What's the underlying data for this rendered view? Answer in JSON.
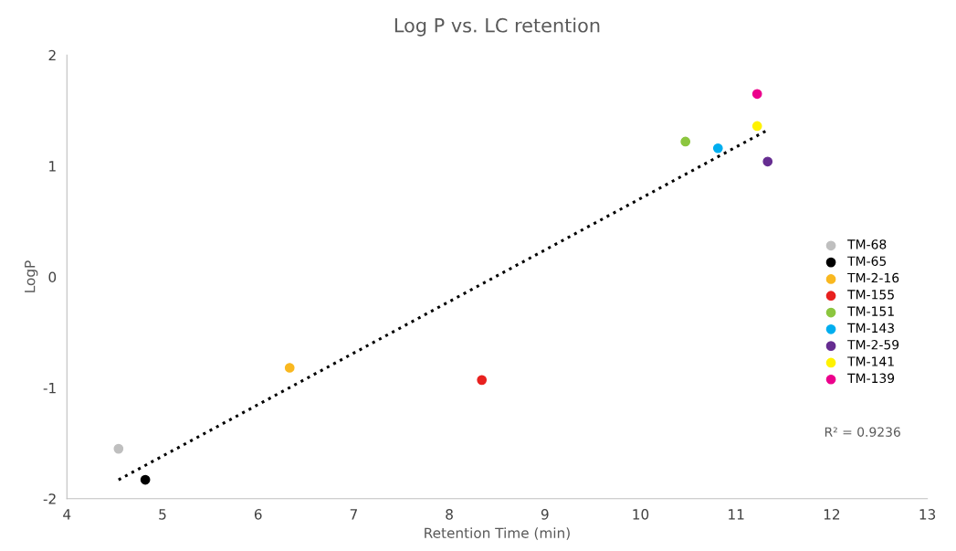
{
  "chart_data": {
    "type": "scatter",
    "title": "Log P vs. LC retention",
    "xlabel": "Retention Time (min)",
    "ylabel": "LogP",
    "xlim": [
      4,
      13
    ],
    "xticks": [
      4,
      5,
      6,
      7,
      8,
      9,
      10,
      11,
      12,
      13
    ],
    "ylim": [
      -2,
      2
    ],
    "yticks": [
      -2,
      -1,
      0,
      1,
      2
    ],
    "grid": false,
    "legend": "right",
    "marker": "circle",
    "annotations": [
      "R² = 0.9236"
    ],
    "series": [
      {
        "name": "TM-68",
        "color": "#bfbfbf",
        "x": [
          4.54
        ],
        "values": [
          -1.55
        ]
      },
      {
        "name": "TM-65",
        "color": "#000000",
        "x": [
          4.82
        ],
        "values": [
          -1.83
        ]
      },
      {
        "name": "TM-2-16",
        "color": "#f9b820",
        "x": [
          6.33
        ],
        "values": [
          -0.82
        ]
      },
      {
        "name": "TM-155",
        "color": "#e8211f",
        "x": [
          8.34
        ],
        "values": [
          -0.93
        ]
      },
      {
        "name": "TM-151",
        "color": "#8cc63f",
        "x": [
          10.47
        ],
        "values": [
          1.22
        ]
      },
      {
        "name": "TM-143",
        "color": "#00aeef",
        "x": [
          10.81
        ],
        "values": [
          1.16
        ]
      },
      {
        "name": "TM-2-59",
        "color": "#662d91",
        "x": [
          11.33
        ],
        "values": [
          1.04
        ]
      },
      {
        "name": "TM-141",
        "color": "#fff200",
        "x": [
          11.22
        ],
        "values": [
          1.36
        ]
      },
      {
        "name": "TM-139",
        "color": "#ec008c",
        "x": [
          11.22
        ],
        "values": [
          1.65
        ]
      },
      {
        "type": "line",
        "color": "#000000",
        "line_style": "dotted",
        "marker": "none",
        "x": [
          4.54,
          11.32
        ],
        "values": [
          -1.83,
          1.32
        ]
      }
    ]
  }
}
